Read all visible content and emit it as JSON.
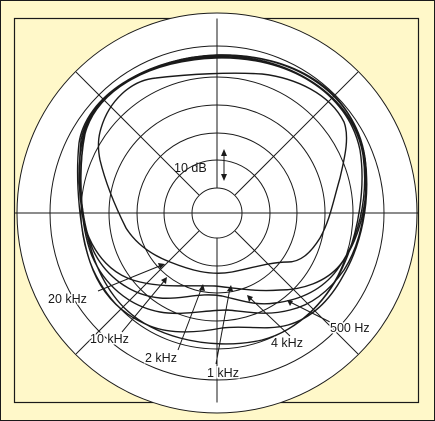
{
  "figure": {
    "background_color": "#fff8c9",
    "line_color": "#1a1a1a",
    "scale_label": "10 dB",
    "curve_labels": [
      "20 kHz",
      "10 kHz",
      "2 kHz",
      "1 kHz",
      "4 kHz",
      "500 Hz"
    ]
  }
}
